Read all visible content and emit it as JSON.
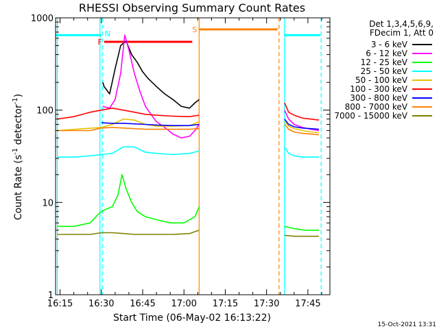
{
  "chart_data": {
    "type": "line",
    "title": "RHESSI Observing Summary Count Rates",
    "xlabel": "Start Time (06-May-02 16:13:22)",
    "ylabel_main": "Count Rate (s",
    "ylabel_sup1": "-1",
    "ylabel_mid": " detector",
    "ylabel_sup2": "-1",
    "ylabel_end": ")",
    "x_unit": "minutes after 16:00 UT",
    "xlim": [
      13.37,
      113
    ],
    "ylim": [
      1,
      1000
    ],
    "yscale": "log",
    "x_ticks": [
      {
        "v": 15,
        "label": "16:15"
      },
      {
        "v": 30,
        "label": "16:30"
      },
      {
        "v": 45,
        "label": "16:45"
      },
      {
        "v": 60,
        "label": "17:00"
      },
      {
        "v": 75,
        "label": "17:15"
      },
      {
        "v": 90,
        "label": "17:30"
      },
      {
        "v": 105,
        "label": "17:45"
      }
    ],
    "y_ticks": [
      {
        "v": 1,
        "label": "1"
      },
      {
        "v": 10,
        "label": "10"
      },
      {
        "v": 100,
        "label": "100"
      },
      {
        "v": 1000,
        "label": "1000"
      }
    ],
    "legend": {
      "placement": "right",
      "header1": "Det 1,3,4,5,6,9,",
      "header2": "FDecim 1, Att 0"
    },
    "series": [
      {
        "name": "3 - 6 keV",
        "color": "#000000",
        "x": [
          30.5,
          31,
          33,
          35,
          37,
          39,
          41,
          43,
          45,
          47,
          50,
          53,
          56,
          59,
          62,
          64,
          65.5
        ],
        "y": [
          200,
          180,
          150,
          280,
          500,
          560,
          400,
          330,
          260,
          220,
          180,
          150,
          130,
          110,
          105,
          120,
          130
        ]
      },
      {
        "name": "6 - 12 keV",
        "color": "#ff00ff",
        "x": [
          30.5,
          33,
          35,
          37,
          38.5,
          40,
          42,
          44,
          46,
          48,
          50,
          53,
          56,
          59,
          62,
          64,
          65.5
        ],
        "y": [
          110,
          105,
          130,
          250,
          650,
          450,
          250,
          160,
          110,
          90,
          75,
          65,
          55,
          50,
          52,
          60,
          70
        ]
      },
      {
        "name": "12 - 25 keV",
        "color": "#00ff00",
        "x": [
          14,
          20,
          26,
          28,
          30,
          32,
          34,
          36,
          37.5,
          39,
          41,
          43,
          46,
          50,
          55,
          60,
          64,
          65.5
        ],
        "y": [
          5.5,
          5.5,
          6,
          7,
          8,
          8.5,
          9,
          12,
          20,
          14,
          10,
          8,
          7,
          6.5,
          6,
          6,
          7,
          9
        ]
      },
      {
        "name": "25 - 50 keV",
        "color": "#00ffff",
        "x": [
          14,
          20,
          26,
          30,
          34,
          38,
          42,
          46,
          50,
          56,
          62,
          65.5
        ],
        "y": [
          31,
          31,
          32,
          33,
          34,
          40,
          40,
          35,
          34,
          33,
          34,
          36
        ]
      },
      {
        "name": "50 - 100 keV",
        "color": "#e8c000",
        "x": [
          14,
          30,
          34,
          38,
          42,
          46,
          50,
          56,
          62,
          65.5
        ],
        "y": [
          60,
          65,
          70,
          80,
          78,
          70,
          67,
          67,
          68,
          75
        ]
      },
      {
        "name": "100 - 300 keV",
        "color": "#ff0000",
        "x": [
          14,
          20,
          26,
          30,
          34,
          38,
          42,
          46,
          50,
          56,
          62,
          65.5
        ],
        "y": [
          80,
          85,
          95,
          100,
          105,
          100,
          95,
          90,
          88,
          86,
          85,
          88
        ]
      },
      {
        "name": "300 - 800 keV",
        "color": "#0000ff",
        "x": [
          30,
          34,
          38,
          42,
          46,
          50,
          56,
          62,
          65.5
        ],
        "y": [
          73,
          72,
          72,
          71,
          70,
          69,
          68,
          68,
          70
        ]
      },
      {
        "name": "800 - 7000 keV",
        "color": "#ff8000",
        "x": [
          14,
          20,
          26,
          30,
          34,
          38,
          42,
          46,
          50,
          56,
          62,
          65.5
        ],
        "y": [
          60,
          60,
          60,
          64,
          65,
          64,
          63,
          62,
          62,
          62,
          62,
          63
        ]
      },
      {
        "name": "7000 - 15000 keV",
        "color": "#808000",
        "x": [
          14,
          20,
          26,
          30,
          34,
          38,
          42,
          46,
          50,
          56,
          62,
          65.5
        ],
        "y": [
          4.5,
          4.5,
          4.5,
          4.7,
          4.7,
          4.6,
          4.5,
          4.5,
          4.5,
          4.5,
          4.6,
          5
        ]
      }
    ],
    "series_segment2": [
      {
        "name": "100 - 300 keV",
        "x": [
          96.5,
          98,
          100,
          103,
          106,
          109
        ],
        "y": [
          120,
          95,
          88,
          82,
          80,
          78
        ]
      },
      {
        "name": "6 - 12 keV",
        "x": [
          96.5,
          98,
          100,
          103,
          106,
          109
        ],
        "y": [
          100,
          80,
          70,
          65,
          62,
          60
        ]
      },
      {
        "name": "300 - 800 keV",
        "x": [
          96.5,
          98,
          100,
          103,
          106,
          109
        ],
        "y": [
          80,
          70,
          66,
          64,
          63,
          62
        ]
      },
      {
        "name": "50 - 100 keV",
        "x": [
          96.5,
          98,
          100,
          103,
          106,
          109
        ],
        "y": [
          75,
          67,
          63,
          60,
          58,
          57
        ]
      },
      {
        "name": "800 - 7000 keV",
        "x": [
          96.5,
          98,
          100,
          103,
          106,
          109
        ],
        "y": [
          70,
          62,
          58,
          56,
          55,
          54
        ]
      },
      {
        "name": "25 - 50 keV",
        "x": [
          96.5,
          98,
          100,
          103,
          106,
          109
        ],
        "y": [
          40,
          34,
          32,
          31,
          31,
          31
        ]
      },
      {
        "name": "12 - 25 keV",
        "x": [
          96.5,
          100,
          104,
          109
        ],
        "y": [
          5.5,
          5.2,
          5,
          5
        ]
      },
      {
        "name": "7000 - 15000 keV",
        "x": [
          96.5,
          100,
          104,
          109
        ],
        "y": [
          4.4,
          4.3,
          4.3,
          4.3
        ]
      }
    ],
    "flags": [
      {
        "label": "F",
        "color": "#ff0000",
        "x_start": 31,
        "x_end": 63,
        "y": 550
      },
      {
        "label": "S",
        "color": "#ff8000",
        "x_start": 65.5,
        "x_end": 94,
        "y": 750
      }
    ],
    "night_bars": [
      {
        "color": "#00ffff",
        "x_start": 13.4,
        "x_end": 30,
        "y": 650
      },
      {
        "color": "#00ffff",
        "x_start": 96.5,
        "x_end": 109.5,
        "y": 650
      }
    ],
    "night_label": "N",
    "vlines": [
      {
        "x": 14,
        "color": "#00ffff",
        "style": "solid"
      },
      {
        "x": 29.5,
        "color": "#00ffff",
        "style": "solid"
      },
      {
        "x": 30.5,
        "color": "#00ffff",
        "style": "dashed"
      },
      {
        "x": 65.5,
        "color": "#ff8000",
        "style": "solid"
      },
      {
        "x": 94.5,
        "color": "#ff8000",
        "style": "dashed"
      },
      {
        "x": 96.5,
        "color": "#00ffff",
        "style": "solid"
      },
      {
        "x": 109.8,
        "color": "#00ffff",
        "style": "dashed"
      }
    ]
  },
  "footer": {
    "timestamp": "15-Oct-2021 13:31"
  }
}
